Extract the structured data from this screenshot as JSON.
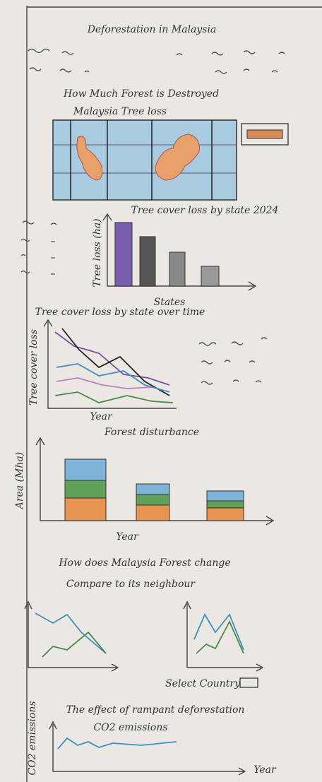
{
  "header": {
    "title": "Deforestation in Malaysia"
  },
  "map_section": {
    "heading": "How Much Forest is Destroyed",
    "map_label": "Malaysia Tree loss"
  },
  "bar_chart": {
    "title": "Tree cover loss by state 2024",
    "y_label": "Tree loss (ha)",
    "x_label": "States"
  },
  "line_chart": {
    "title": "Tree cover loss by state over time",
    "y_label": "Tree cover loss",
    "x_label": "Year"
  },
  "stacked_chart": {
    "title": "Forest disturbance",
    "y_label": "Area (Mha)",
    "x_label": "Year"
  },
  "comparison": {
    "heading": [
      "How does Malaysia Forest change",
      "Compare to its neighbour"
    ],
    "control": "Select Country"
  },
  "emissions": {
    "heading": "The effect of rampant deforestation",
    "chart_title": "CO2 emissions",
    "y_label": "CO2 emissions",
    "x_label": "Year"
  }
}
